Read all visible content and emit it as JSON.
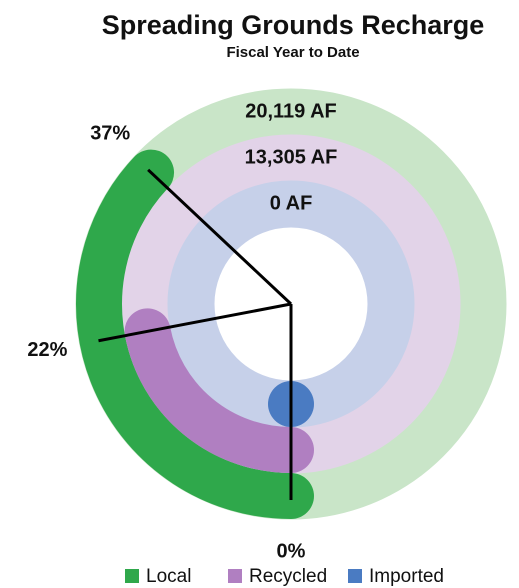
{
  "chart_data": {
    "type": "radial_bar",
    "title": "Spreading Grounds Recharge",
    "subtitle": "Fiscal Year to Date",
    "ylim": [
      0,
      100
    ],
    "series": [
      {
        "name": "Local",
        "color": "#2fa84b",
        "track_color": "#c9e5c8",
        "value": 37,
        "value_label": "37%",
        "total": "20,119 AF"
      },
      {
        "name": "Recycled",
        "color": "#b07fc1",
        "track_color": "#e2d3e8",
        "value": 22,
        "value_label": "22%",
        "total": "13,305 AF"
      },
      {
        "name": "Imported",
        "color": "#4a7bc2",
        "track_color": "#c6d0e9",
        "value": 0,
        "value_label": "0%",
        "total": "0 AF"
      }
    ]
  }
}
